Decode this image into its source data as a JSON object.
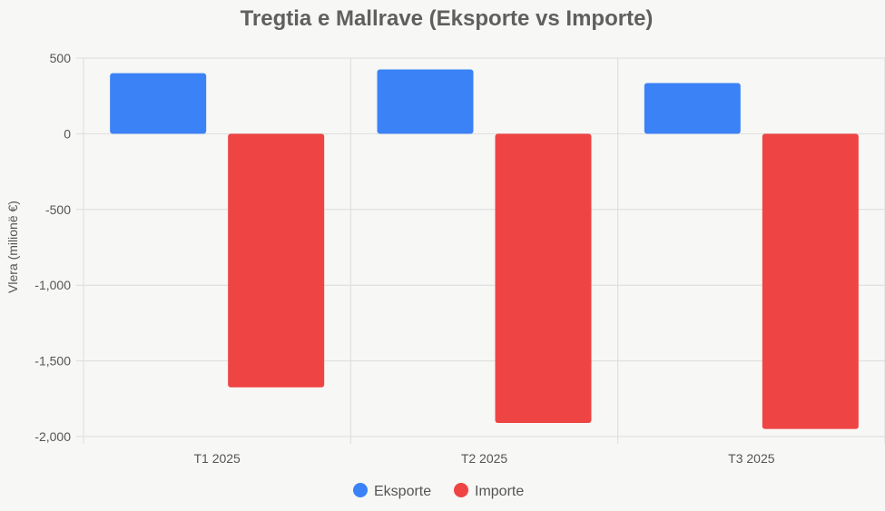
{
  "chart_data": {
    "type": "bar",
    "title": "Tregtia e Mallrave (Eksporte vs Importe)",
    "ylabel": "Vlera (milionë €)",
    "xlabel": "",
    "categories": [
      "T1 2025",
      "T2 2025",
      "T3 2025"
    ],
    "series": [
      {
        "name": "Eksporte",
        "color": "#3b82f6",
        "values": [
          400,
          425,
          335
        ]
      },
      {
        "name": "Importe",
        "color": "#ef4444",
        "values": [
          -1675,
          -1910,
          -1950
        ]
      }
    ],
    "ylim": [
      -2000,
      500
    ],
    "yticks": [
      500,
      0,
      -500,
      -1000,
      -1500,
      -2000
    ],
    "ytick_labels": [
      "500",
      "0",
      "-500",
      "-1,000",
      "-1,500",
      "-2,000"
    ],
    "grid": true,
    "legend": "bottom"
  }
}
